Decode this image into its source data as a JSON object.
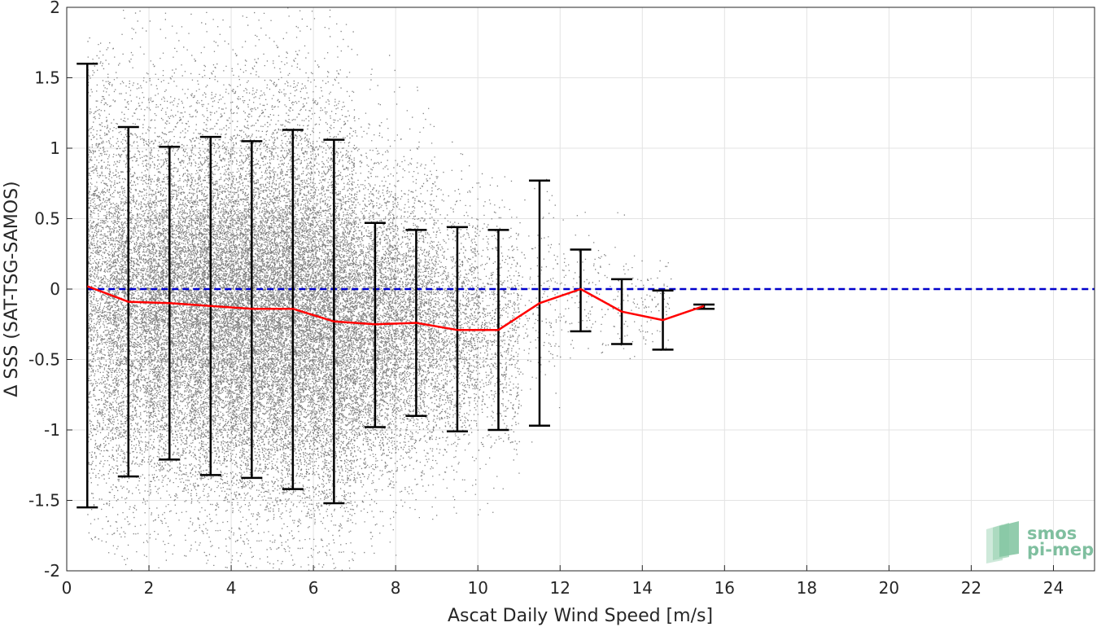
{
  "chart_data": {
    "type": "scatter",
    "title": "",
    "xlabel": "Ascat Daily Wind Speed [m/s]",
    "ylabel": "Δ SSS (SAT-TSG-SAMOS)",
    "xlim": [
      0,
      25
    ],
    "ylim": [
      -2,
      2
    ],
    "xticks": [
      "0",
      "2",
      "4",
      "6",
      "8",
      "10",
      "12",
      "14",
      "16",
      "18",
      "20",
      "22",
      "24"
    ],
    "yticks": [
      "-2",
      "-1.5",
      "-1",
      "-0.5",
      "0",
      "0.5",
      "1",
      "1.5",
      "2"
    ],
    "grid": true,
    "colors": {
      "scatter": "#808080",
      "median_line": "#ff0000",
      "zero_line": "#0000cc",
      "error_bars": "#000000",
      "logo": "#7fbf9f"
    },
    "zero_reference": 0,
    "median_series": {
      "x": [
        0.5,
        1.5,
        2.5,
        3.5,
        4.5,
        5.5,
        6.5,
        7.5,
        8.5,
        9.5,
        10.5,
        11.5,
        12.5,
        13.5,
        14.5,
        15.5
      ],
      "y": [
        0.02,
        -0.09,
        -0.1,
        -0.12,
        -0.14,
        -0.14,
        -0.23,
        -0.25,
        -0.24,
        -0.29,
        -0.29,
        -0.1,
        0.0,
        -0.16,
        -0.22,
        -0.12
      ]
    },
    "error_bars": {
      "x": [
        0.5,
        1.5,
        2.5,
        3.5,
        4.5,
        5.5,
        6.5,
        7.5,
        8.5,
        9.5,
        10.5,
        11.5,
        12.5,
        13.5,
        14.5,
        15.5
      ],
      "upper": [
        1.6,
        1.15,
        1.01,
        1.08,
        1.05,
        1.13,
        1.06,
        0.47,
        0.42,
        0.44,
        0.42,
        0.77,
        0.28,
        0.07,
        -0.01,
        -0.11
      ],
      "lower": [
        -1.55,
        -1.33,
        -1.21,
        -1.32,
        -1.34,
        -1.42,
        -1.52,
        -0.98,
        -0.9,
        -1.01,
        -1.0,
        -0.97,
        -0.3,
        -0.39,
        -0.43,
        -0.14
      ]
    },
    "scatter_bins": [
      {
        "x_range": [
          0.5,
          1.0
        ],
        "center": 0.05,
        "spread": 0.75,
        "y_min": -1.8,
        "y_max": 1.8,
        "density": 1400
      },
      {
        "x_range": [
          1.0,
          2.0
        ],
        "center": -0.09,
        "spread": 0.62,
        "y_min": -2,
        "y_max": 2,
        "density": 3400
      },
      {
        "x_range": [
          2.0,
          3.0
        ],
        "center": -0.1,
        "spread": 0.58,
        "y_min": -2,
        "y_max": 2,
        "density": 4300
      },
      {
        "x_range": [
          3.0,
          4.0
        ],
        "center": -0.12,
        "spread": 0.6,
        "y_min": -2,
        "y_max": 2,
        "density": 5000
      },
      {
        "x_range": [
          4.0,
          5.0
        ],
        "center": -0.14,
        "spread": 0.62,
        "y_min": -2,
        "y_max": 2,
        "density": 5400
      },
      {
        "x_range": [
          5.0,
          6.0
        ],
        "center": -0.14,
        "spread": 0.64,
        "y_min": -2,
        "y_max": 2,
        "density": 5400
      },
      {
        "x_range": [
          6.0,
          7.0
        ],
        "center": -0.22,
        "spread": 0.62,
        "y_min": -2,
        "y_max": 2,
        "density": 4600
      },
      {
        "x_range": [
          7.0,
          8.0
        ],
        "center": -0.25,
        "spread": 0.5,
        "y_min": -1.9,
        "y_max": 1.8,
        "density": 3200
      },
      {
        "x_range": [
          8.0,
          9.0
        ],
        "center": -0.24,
        "spread": 0.45,
        "y_min": -1.7,
        "y_max": 1.45,
        "density": 2200
      },
      {
        "x_range": [
          9.0,
          10.0
        ],
        "center": -0.29,
        "spread": 0.4,
        "y_min": -1.6,
        "y_max": 1.1,
        "density": 1400
      },
      {
        "x_range": [
          10.0,
          11.0
        ],
        "center": -0.29,
        "spread": 0.38,
        "y_min": -1.7,
        "y_max": 0.9,
        "density": 800
      },
      {
        "x_range": [
          11.0,
          12.0
        ],
        "center": -0.15,
        "spread": 0.35,
        "y_min": -1.1,
        "y_max": 0.8,
        "density": 180
      },
      {
        "x_range": [
          12.0,
          13.0
        ],
        "center": -0.05,
        "spread": 0.22,
        "y_min": -0.5,
        "y_max": 0.75,
        "density": 110
      },
      {
        "x_range": [
          13.0,
          14.0
        ],
        "center": -0.15,
        "spread": 0.2,
        "y_min": -0.5,
        "y_max": 0.7,
        "density": 90
      },
      {
        "x_range": [
          14.0,
          14.7
        ],
        "center": -0.15,
        "spread": 0.18,
        "y_min": -0.48,
        "y_max": 0.35,
        "density": 70
      }
    ]
  },
  "logo": {
    "line1": "smos",
    "line2": "pi-mep"
  }
}
